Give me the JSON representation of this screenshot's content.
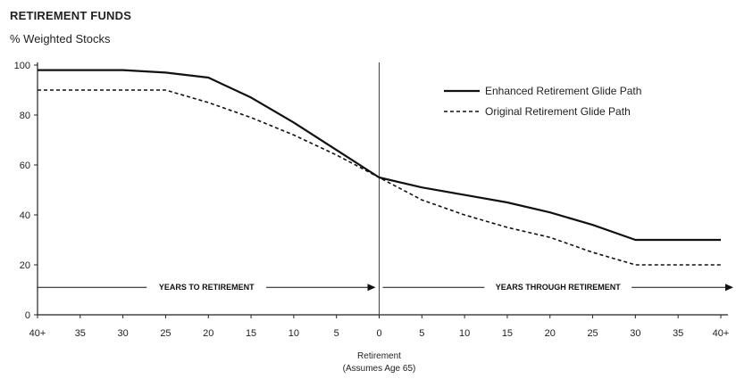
{
  "chart_data": {
    "type": "line",
    "title": "RETIREMENT FUNDS",
    "ylabel": "% Weighted Stocks",
    "xlabel_line1": "Retirement",
    "xlabel_line2": "(Assumes Age 65)",
    "ylim": [
      0,
      100
    ],
    "yticks": [
      0,
      20,
      40,
      60,
      80,
      100
    ],
    "xticks": [
      "40+",
      "35",
      "30",
      "25",
      "20",
      "15",
      "10",
      "5",
      "0",
      "5",
      "10",
      "15",
      "20",
      "25",
      "30",
      "35",
      "40+"
    ],
    "x_index_range": [
      0,
      16
    ],
    "retirement_index": 8,
    "series": [
      {
        "name": "Enhanced Retirement Glide Path",
        "style": "solid",
        "points": [
          [
            0,
            98
          ],
          [
            2,
            98
          ],
          [
            3,
            97
          ],
          [
            4,
            95
          ],
          [
            5,
            87
          ],
          [
            6,
            77
          ],
          [
            7,
            66
          ],
          [
            8,
            55
          ],
          [
            9,
            51
          ],
          [
            10,
            48
          ],
          [
            11,
            45
          ],
          [
            12,
            41
          ],
          [
            13,
            36
          ],
          [
            14,
            30
          ],
          [
            15,
            30
          ],
          [
            16,
            30
          ]
        ]
      },
      {
        "name": "Original Retirement Glide Path",
        "style": "dashed",
        "points": [
          [
            0,
            90
          ],
          [
            3,
            90
          ],
          [
            4,
            85
          ],
          [
            5,
            79
          ],
          [
            6,
            72
          ],
          [
            7,
            64
          ],
          [
            8,
            55
          ],
          [
            9,
            46
          ],
          [
            10,
            40
          ],
          [
            11,
            35
          ],
          [
            12,
            31
          ],
          [
            13,
            25
          ],
          [
            14,
            20
          ],
          [
            15,
            20
          ],
          [
            16,
            20
          ]
        ]
      }
    ],
    "arrows": {
      "left": "YEARS TO RETIREMENT",
      "right": "YEARS THROUGH RETIREMENT",
      "y": 11
    },
    "grid": false,
    "legend_position": "top-right"
  }
}
